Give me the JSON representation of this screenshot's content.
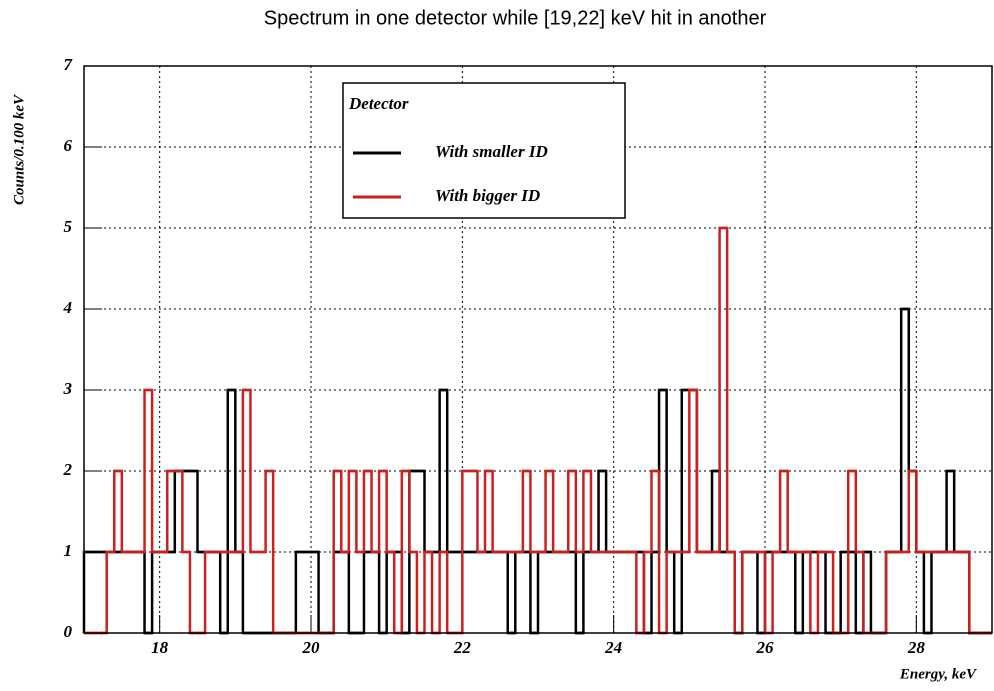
{
  "chart_data": {
    "type": "histogram",
    "title": "Spectrum in one detector while [19,22] keV hit in another",
    "xlabel": "Energy, keV",
    "ylabel": "Counts/0.100 keV",
    "legend_title": "Detector",
    "legend": "top",
    "bins": [
      17,
      17.1,
      17.2,
      17.3,
      17.4,
      17.5,
      17.6,
      17.7,
      17.8,
      17.9,
      18,
      18.1,
      18.2,
      18.3,
      18.4,
      18.5,
      18.6,
      18.7,
      18.8,
      18.9,
      19,
      19.1,
      19.2,
      19.3,
      19.4,
      19.5,
      19.6,
      19.7,
      19.8,
      19.9,
      20,
      20.1,
      20.2,
      20.3,
      20.4,
      20.5,
      20.6,
      20.7,
      20.8,
      20.9,
      21,
      21.1,
      21.2,
      21.3,
      21.4,
      21.5,
      21.6,
      21.7,
      21.8,
      21.9,
      22,
      22.1,
      22.2,
      22.3,
      22.4,
      22.5,
      22.6,
      22.7,
      22.8,
      22.9,
      23,
      23.1,
      23.2,
      23.3,
      23.4,
      23.5,
      23.6,
      23.7,
      23.8,
      23.9,
      24,
      24.1,
      24.2,
      24.3,
      24.4,
      24.5,
      24.6,
      24.7,
      24.8,
      24.9,
      25,
      25.1,
      25.2,
      25.3,
      25.4,
      25.5,
      25.6,
      25.7,
      25.8,
      25.9,
      26,
      26.1,
      26.2,
      26.3,
      26.4,
      26.5,
      26.6,
      26.7,
      26.8,
      26.9,
      27,
      27.1,
      27.2,
      27.3,
      27.4,
      27.5,
      27.6,
      27.7,
      27.8,
      27.9,
      28,
      28.1,
      28.2,
      28.3,
      28.4,
      28.5,
      28.6,
      28.7,
      28.8,
      28.9,
      29
    ],
    "series": [
      {
        "name": "With smaller ID",
        "color": "#000000",
        "values": [
          1,
          1,
          1,
          1,
          1,
          1,
          1,
          1,
          0,
          1,
          1,
          1,
          2,
          2,
          2,
          1,
          1,
          1,
          0,
          3,
          1,
          0,
          0,
          0,
          0,
          0,
          0,
          0,
          1,
          1,
          1,
          0,
          0,
          1,
          1,
          0,
          0,
          1,
          1,
          0,
          1,
          1,
          0,
          2,
          2,
          1,
          1,
          3,
          1,
          1,
          1,
          1,
          1,
          1,
          1,
          1,
          0,
          1,
          1,
          0,
          1,
          1,
          1,
          1,
          1,
          0,
          1,
          1,
          2,
          1,
          1,
          1,
          1,
          1,
          0,
          1,
          3,
          1,
          0,
          3,
          3,
          1,
          1,
          2,
          1,
          1,
          0,
          1,
          1,
          0,
          1,
          1,
          1,
          1,
          0,
          1,
          1,
          1,
          0,
          0,
          1,
          1,
          0,
          1,
          0,
          0,
          1,
          1,
          4,
          2,
          1,
          0,
          1,
          1,
          2,
          1,
          1,
          0,
          0,
          0
        ]
      },
      {
        "name": "With bigger ID",
        "color": "#cc2020",
        "values": [
          0,
          0,
          0,
          1,
          2,
          1,
          1,
          1,
          3,
          1,
          1,
          2,
          2,
          1,
          0,
          0,
          1,
          1,
          1,
          1,
          1,
          3,
          1,
          1,
          2,
          0,
          0,
          0,
          0,
          0,
          0,
          0,
          0,
          2,
          1,
          2,
          1,
          2,
          1,
          2,
          1,
          0,
          2,
          1,
          0,
          1,
          0,
          1,
          0,
          0,
          2,
          2,
          1,
          2,
          1,
          1,
          1,
          1,
          2,
          1,
          1,
          2,
          1,
          1,
          2,
          1,
          2,
          1,
          1,
          1,
          1,
          1,
          1,
          0,
          1,
          2,
          0,
          1,
          1,
          1,
          3,
          1,
          1,
          1,
          5,
          1,
          0,
          1,
          1,
          1,
          0,
          1,
          2,
          1,
          1,
          1,
          0,
          1,
          1,
          0,
          0,
          2,
          1,
          0,
          0,
          0,
          1,
          1,
          1,
          2,
          1,
          1,
          1,
          1,
          1,
          1,
          1,
          0,
          0,
          0
        ]
      }
    ],
    "xlim": [
      17,
      29
    ],
    "ylim": [
      0,
      7
    ],
    "xticks": [
      18,
      20,
      22,
      24,
      26,
      28
    ],
    "yticks": [
      0,
      1,
      2,
      3,
      4,
      5,
      6,
      7
    ],
    "grid": true
  }
}
